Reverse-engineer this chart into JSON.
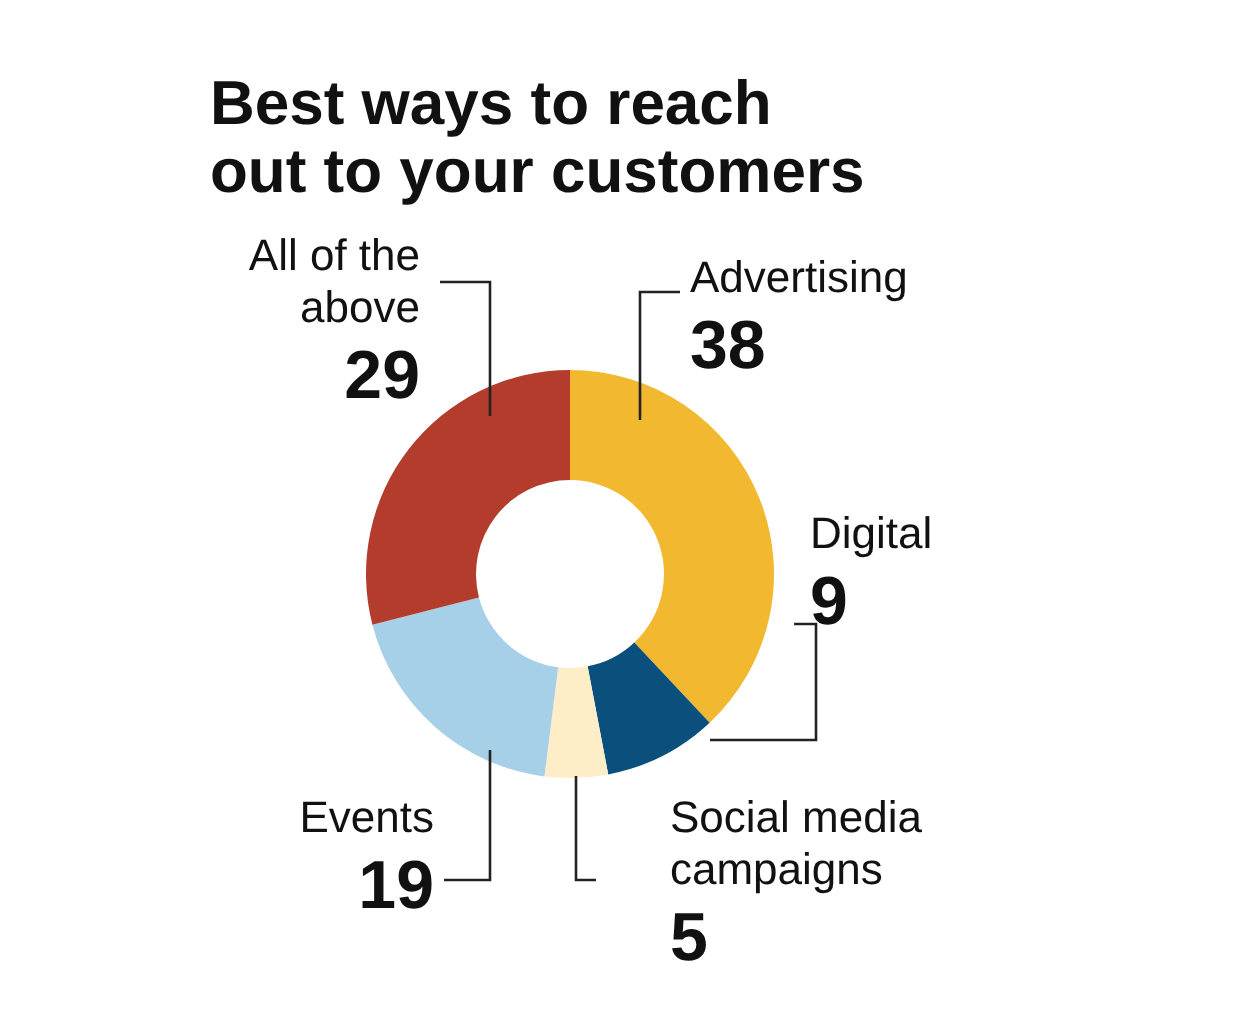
{
  "chart_data": {
    "type": "donut",
    "title": "Best ways to reach out to your customers",
    "categories": [
      "Advertising",
      "Digital",
      "Social media campaigns",
      "Events",
      "All of the above"
    ],
    "values": [
      38,
      9,
      5,
      19,
      29
    ],
    "colors": [
      "#f2b930",
      "#0b4f7c",
      "#fdeec8",
      "#a6cfe8",
      "#b33c2c"
    ],
    "data_labels": true
  }
}
